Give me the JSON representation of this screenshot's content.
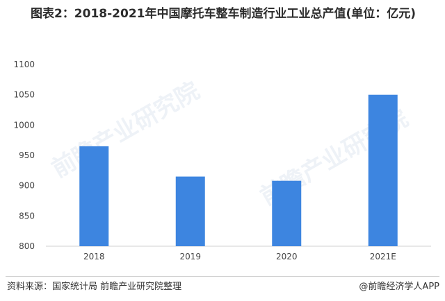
{
  "title": "图表2：2018-2021年中国摩托车整车制造行业工业总产值(单位：亿元)",
  "chart_data": {
    "type": "bar",
    "categories": [
      "2018",
      "2019",
      "2020",
      "2021E"
    ],
    "values": [
      965,
      915,
      908,
      1050
    ],
    "ylim": [
      800,
      1100
    ],
    "yticks": [
      800,
      850,
      900,
      950,
      1000,
      1050,
      1100
    ],
    "grid": false,
    "bar_color": "#3d85e0"
  },
  "footer": {
    "source": "资料来源：国家统计局 前瞻产业研究院整理",
    "brand": "@前瞻经济学人APP"
  },
  "watermark": {
    "text": "前瞻产业研究院"
  }
}
